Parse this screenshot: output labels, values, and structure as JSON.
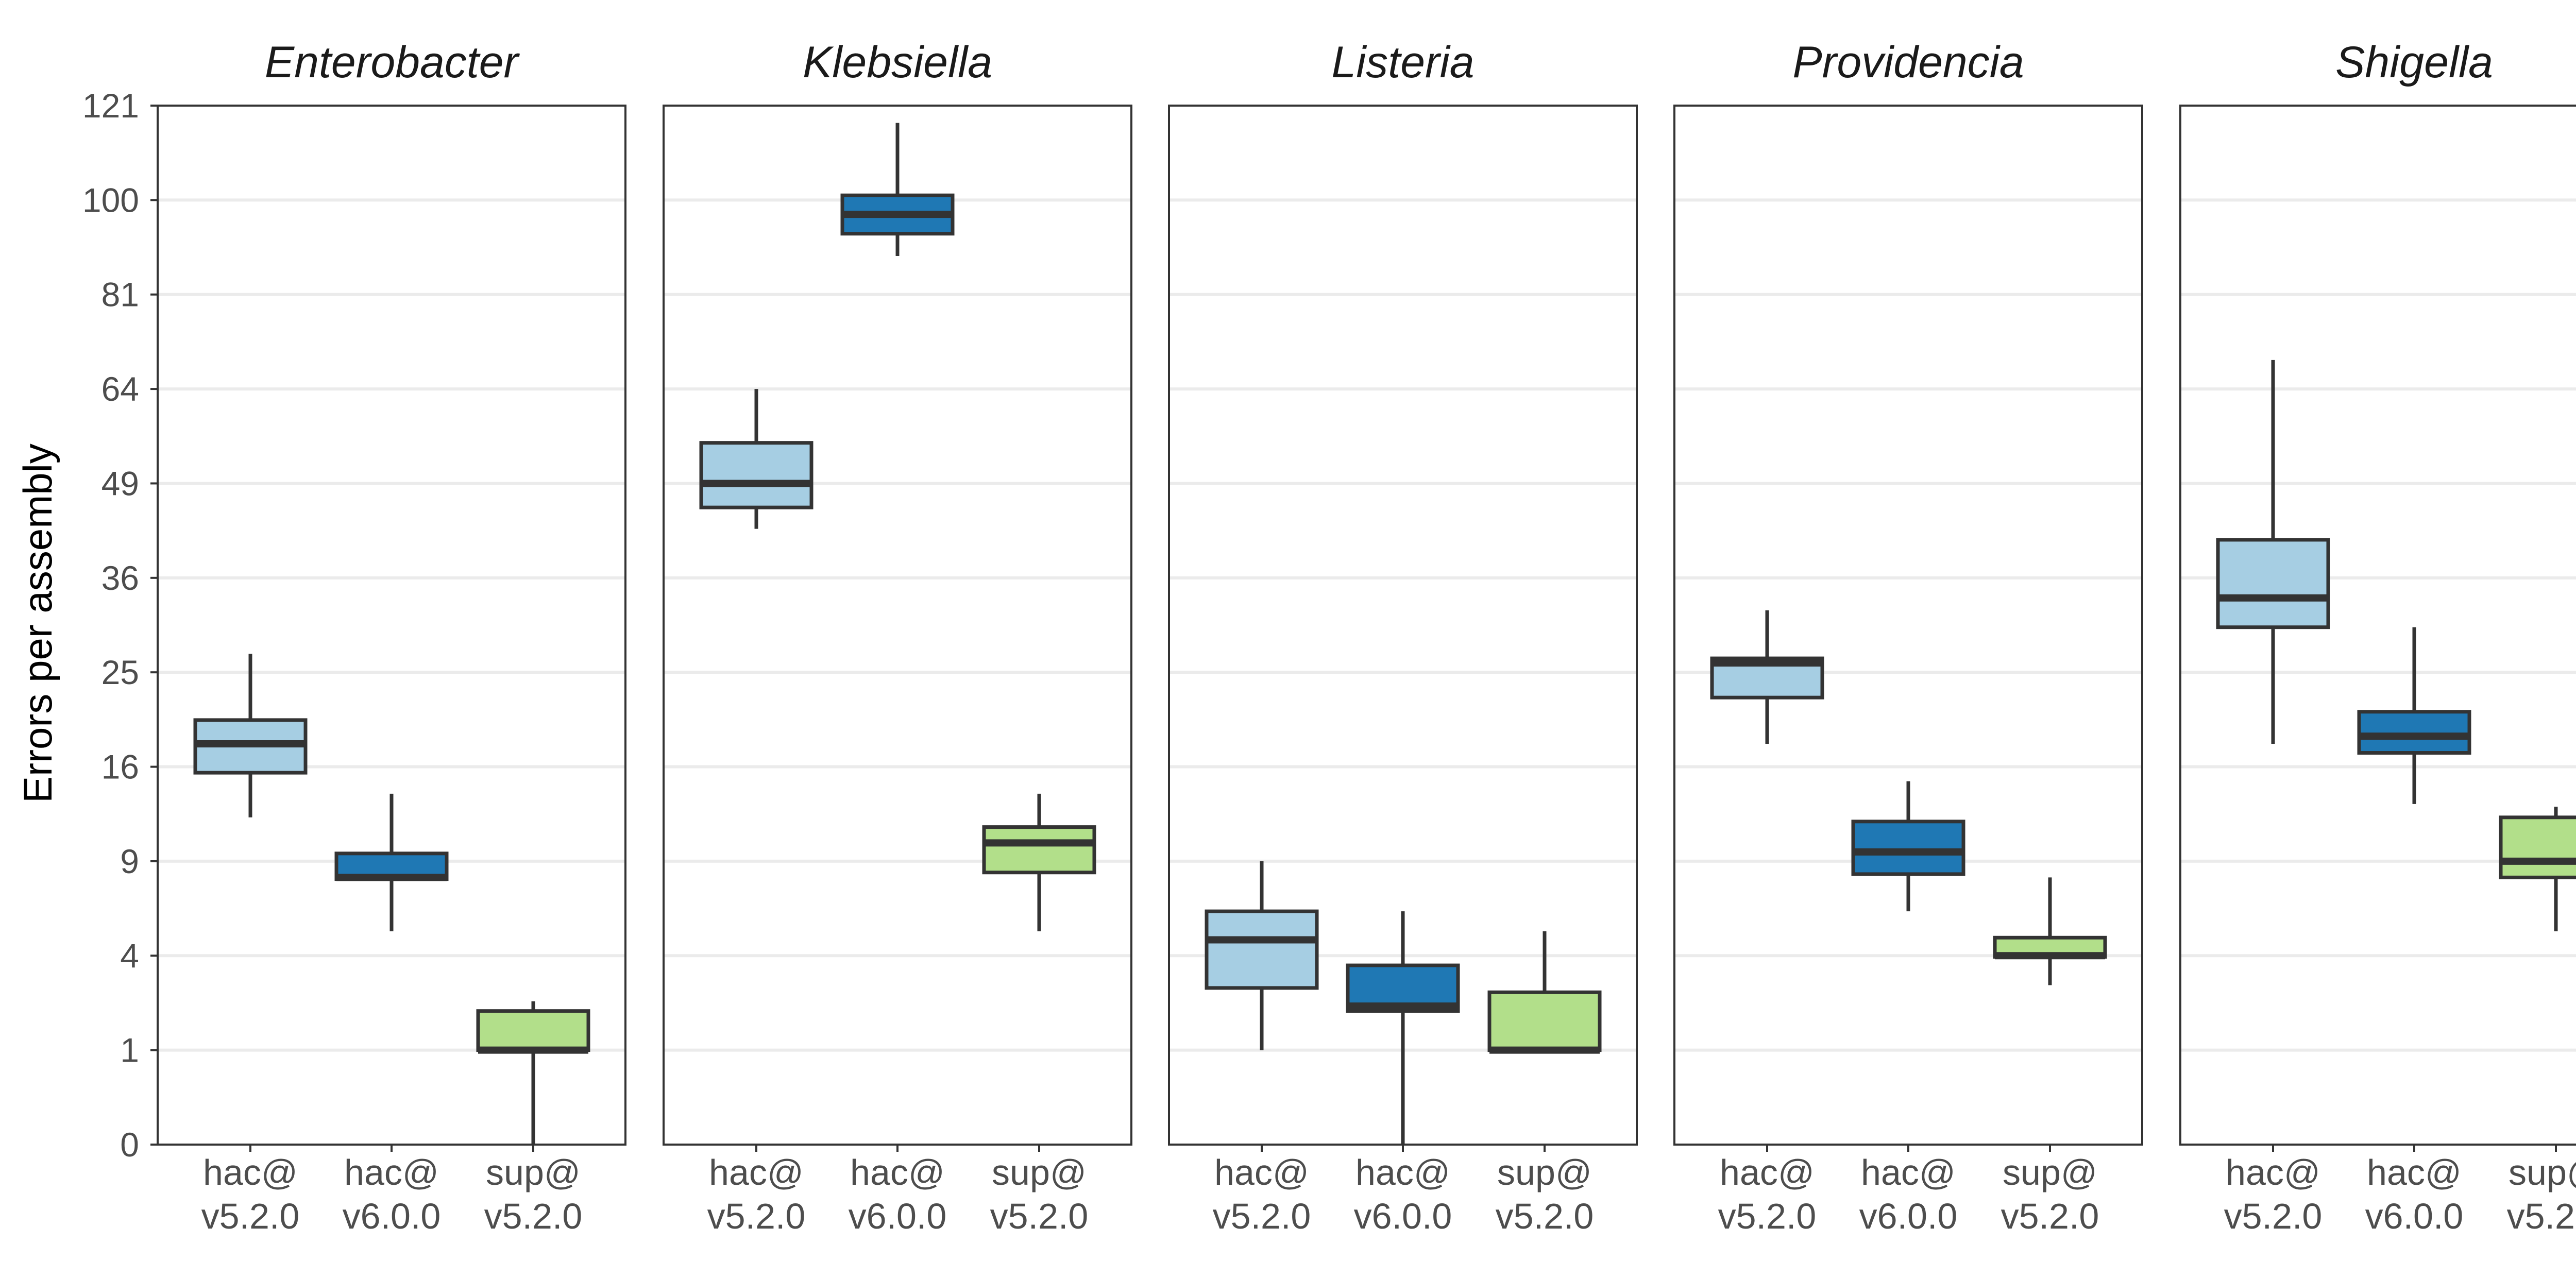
{
  "chart_data": {
    "type": "boxplot",
    "ylabel": "Errors per assembly",
    "y_scale": "sqrt",
    "ylim": [
      0,
      121
    ],
    "y_ticks": [
      0,
      1,
      4,
      9,
      16,
      25,
      36,
      49,
      64,
      81,
      100,
      121
    ],
    "y_tick_labels": [
      "0",
      "1",
      "4",
      "9",
      "16",
      "25",
      "36",
      "49",
      "64",
      "81",
      "100",
      "121"
    ],
    "categories": [
      {
        "line1": "hac@",
        "line2": "v5.2.0"
      },
      {
        "line1": "hac@",
        "line2": "v6.0.0"
      },
      {
        "line1": "sup@",
        "line2": "v5.2.0"
      }
    ],
    "category_colors": [
      "#a6cee3",
      "#1f78b4",
      "#b2df8a"
    ],
    "facets": [
      {
        "title": "Enterobacter",
        "boxes": [
          {
            "min": 12,
            "q1": 15.5,
            "median": 18,
            "q3": 20.2,
            "max": 27
          },
          {
            "min": 5.1,
            "q1": 7.9,
            "median": 8,
            "q3": 9.5,
            "max": 13.8
          },
          {
            "min": 0,
            "q1": 1,
            "median": 1,
            "q3": 2,
            "max": 2.3
          }
        ]
      },
      {
        "title": "Klebsiella",
        "boxes": [
          {
            "min": 42.5,
            "q1": 45.5,
            "median": 49,
            "q3": 55.2,
            "max": 64
          },
          {
            "min": 88.5,
            "q1": 93,
            "median": 97,
            "q3": 101,
            "max": 117
          },
          {
            "min": 5.1,
            "q1": 8.3,
            "median": 10.2,
            "q3": 11.3,
            "max": 13.8
          }
        ]
      },
      {
        "title": "Listeria",
        "boxes": [
          {
            "min": 1,
            "q1": 2.75,
            "median": 4.7,
            "q3": 6.1,
            "max": 9
          },
          {
            "min": 0,
            "q1": 2,
            "median": 2.15,
            "q3": 3.6,
            "max": 6.1
          },
          {
            "min": 1,
            "q1": 1,
            "median": 1,
            "q3": 2.6,
            "max": 5.1
          }
        ]
      },
      {
        "title": "Providencia",
        "boxes": [
          {
            "min": 18,
            "q1": 22.4,
            "median": 26,
            "q3": 26.5,
            "max": 32
          },
          {
            "min": 6.1,
            "q1": 8.2,
            "median": 9.6,
            "q3": 11.7,
            "max": 14.8
          },
          {
            "min": 2.85,
            "q1": 3.95,
            "median": 4,
            "q3": 4.8,
            "max": 8
          }
        ]
      },
      {
        "title": "Shigella",
        "boxes": [
          {
            "min": 18,
            "q1": 30,
            "median": 33.5,
            "q3": 41,
            "max": 69
          },
          {
            "min": 13,
            "q1": 17.2,
            "median": 18.7,
            "q3": 21,
            "max": 30
          },
          {
            "min": 5.1,
            "q1": 8,
            "median": 9,
            "q3": 12,
            "max": 12.8
          }
        ]
      }
    ]
  }
}
